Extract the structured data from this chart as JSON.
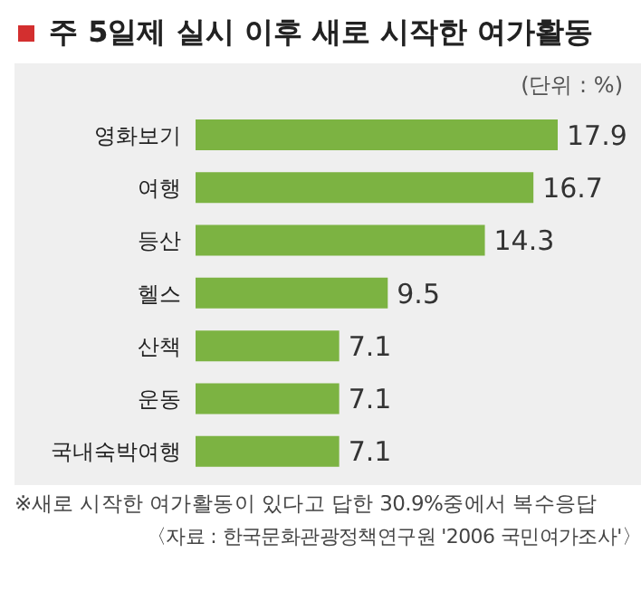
{
  "chart_data": {
    "type": "bar",
    "orientation": "horizontal",
    "title": "주 5일제 실시 이후 새로 시작한 여가활동",
    "subtitle": "(단위 : %)",
    "categories": [
      "영화보기",
      "여행",
      "등산",
      "헬스",
      "산책",
      "운동",
      "국내숙박여행"
    ],
    "values": [
      17.9,
      16.7,
      14.3,
      9.5,
      7.1,
      7.1,
      7.1
    ],
    "color": "#7cb342",
    "data_labels": true,
    "annotations": [
      "※새로 시작한 여가활동이 있다고 답한 30.9%중에서 복수응답",
      "〈자료 : 한국문화관광정책연구원 '2006 국민여가조사'〉"
    ]
  }
}
